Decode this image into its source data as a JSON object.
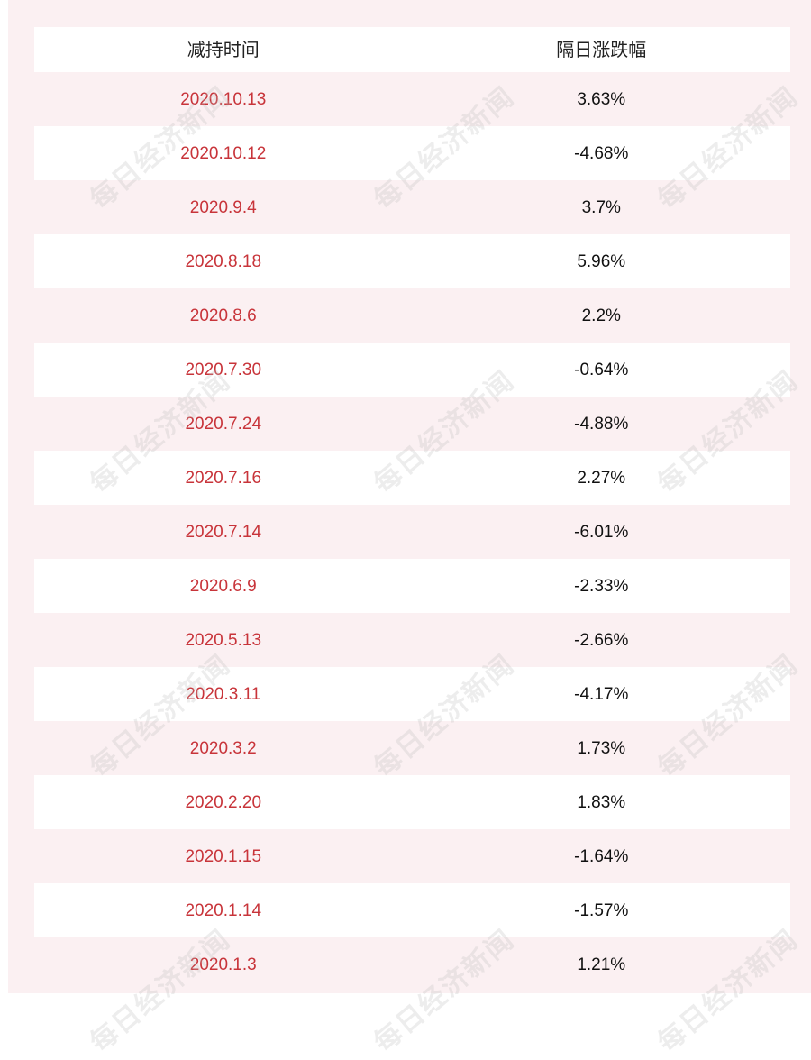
{
  "table": {
    "headers": [
      "减持时间",
      "隔日涨跌幅"
    ],
    "rows": [
      {
        "date": "2020.10.13",
        "change": "3.63%"
      },
      {
        "date": "2020.10.12",
        "change": "-4.68%"
      },
      {
        "date": "2020.9.4",
        "change": "3.7%"
      },
      {
        "date": "2020.8.18",
        "change": "5.96%"
      },
      {
        "date": "2020.8.6",
        "change": "2.2%"
      },
      {
        "date": "2020.7.30",
        "change": "-0.64%"
      },
      {
        "date": "2020.7.24",
        "change": "-4.88%"
      },
      {
        "date": "2020.7.16",
        "change": "2.27%"
      },
      {
        "date": "2020.7.14",
        "change": "-6.01%"
      },
      {
        "date": "2020.6.9",
        "change": "-2.33%"
      },
      {
        "date": "2020.5.13",
        "change": "-2.66%"
      },
      {
        "date": "2020.3.11",
        "change": "-4.17%"
      },
      {
        "date": "2020.3.2",
        "change": "1.73%"
      },
      {
        "date": "2020.2.20",
        "change": "1.83%"
      },
      {
        "date": "2020.1.15",
        "change": "-1.64%"
      },
      {
        "date": "2020.1.14",
        "change": "-1.57%"
      },
      {
        "date": "2020.1.3",
        "change": "1.21%"
      }
    ]
  },
  "watermark": {
    "text": "每日经济新闻"
  },
  "colors": {
    "date_text": "#c8343a",
    "change_text": "#111111",
    "page_background": "#fbf0f2"
  }
}
